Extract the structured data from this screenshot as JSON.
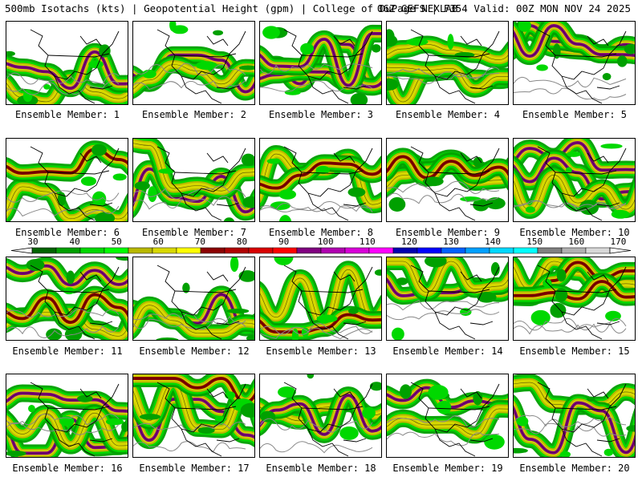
{
  "header": {
    "title_left": "500mb Isotachs (kts) | Geopotential Height (gpm) | College of DuPage NEXLAB",
    "title_right": "06Z GEFS | F354 Valid: 00Z MON NOV 24 2025"
  },
  "members": [
    {
      "label": "Ensemble Member: 1"
    },
    {
      "label": "Ensemble Member: 2"
    },
    {
      "label": "Ensemble Member: 3"
    },
    {
      "label": "Ensemble Member: 4"
    },
    {
      "label": "Ensemble Member: 5"
    },
    {
      "label": "Ensemble Member: 6"
    },
    {
      "label": "Ensemble Member: 7"
    },
    {
      "label": "Ensemble Member: 8"
    },
    {
      "label": "Ensemble Member: 9"
    },
    {
      "label": "Ensemble Member: 10"
    },
    {
      "label": "Ensemble Member: 11"
    },
    {
      "label": "Ensemble Member: 12"
    },
    {
      "label": "Ensemble Member: 13"
    },
    {
      "label": "Ensemble Member: 14"
    },
    {
      "label": "Ensemble Member: 15"
    },
    {
      "label": "Ensemble Member: 16"
    },
    {
      "label": "Ensemble Member: 17"
    },
    {
      "label": "Ensemble Member: 18"
    },
    {
      "label": "Ensemble Member: 19"
    },
    {
      "label": "Ensemble Member: 20"
    }
  ],
  "colorbar": {
    "labels": [
      "30",
      "40",
      "50",
      "60",
      "70",
      "80",
      "90",
      "100",
      "110",
      "120",
      "130",
      "140",
      "150",
      "160",
      "170"
    ],
    "colors": [
      "#006400",
      "#00a000",
      "#00d800",
      "#00ff00",
      "#b8b800",
      "#d8d800",
      "#ffff00",
      "#8b0000",
      "#b00000",
      "#d80000",
      "#ff0000",
      "#800080",
      "#b000b0",
      "#d800d8",
      "#ff00ff",
      "#0000b0",
      "#0000ff",
      "#0060ff",
      "#00a0ff",
      "#00d8ff",
      "#00ffff",
      "#808080",
      "#b0b0b0",
      "#d8d8d8"
    ]
  }
}
